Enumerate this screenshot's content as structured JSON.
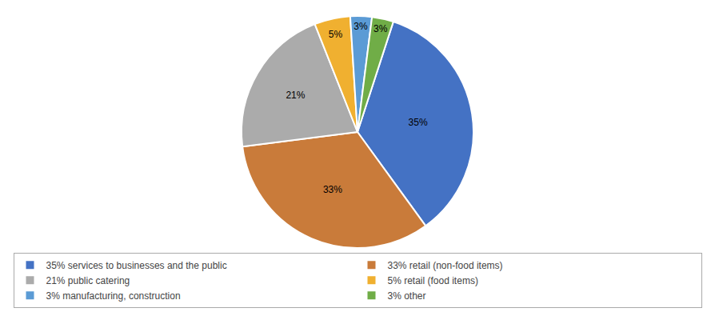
{
  "chart_data": {
    "type": "pie",
    "categories": [
      "35% services to businesses and the public",
      "33% retail (non-food items)",
      "21% public catering",
      "5% retail (food items)",
      "3% manufacturing, construction",
      "3% other"
    ],
    "values": [
      35,
      33,
      21,
      5,
      3,
      3
    ],
    "value_labels": [
      "35%",
      "33%",
      "21%",
      "5%",
      "3%",
      "3%"
    ],
    "colors": [
      "#4472C4",
      "#C97B3A",
      "#ABABAB",
      "#F0B030",
      "#5B9BD5",
      "#70AD47"
    ],
    "data_labels": true,
    "legend": "bottom"
  }
}
